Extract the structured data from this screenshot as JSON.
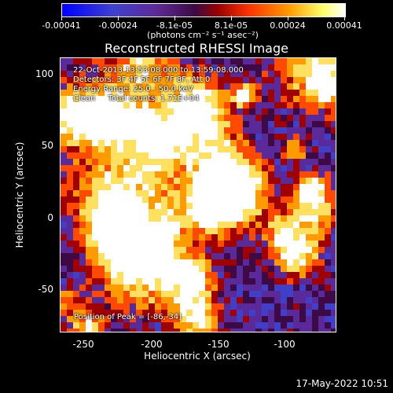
{
  "colorbar": {
    "ticks": [
      "-0.00041",
      "-0.00024",
      "-8.1e-05",
      "8.1e-05",
      "0.00024",
      "0.00041"
    ],
    "units": "(photons cm⁻² s⁻¹ asec⁻²)"
  },
  "title": "Reconstructed RHESSI Image",
  "info": {
    "time": "22-Oct-2013 13:53:08.000 to 13:59:08.000",
    "detectors": "Detectors: 3F 4F 5F 6F 7F 8F, Att 0",
    "energy": "Energy Range: 25.0 - 50.0 keV",
    "clean": "Clean     Total counts: 1.71E+04"
  },
  "peak": "Position of Peak = [-86,-34]",
  "axes": {
    "xlabel": "Heliocentric X (arcsec)",
    "ylabel": "Heliocentric Y (arcsec)",
    "xticks": [
      "-250",
      "-200",
      "-150",
      "-100"
    ],
    "yticks": [
      "100",
      "50",
      "0",
      "-50"
    ]
  },
  "timestamp": "17-May-2022 10:51",
  "colors": {
    "deep": "#3d0a45",
    "low": "#5b2a9a",
    "blue": "#3f3fc8",
    "mid": "#a00000",
    "hot": "#ff4a00",
    "warm": "#ff9a00",
    "bright": "#ffe060",
    "white": "#ffffff"
  }
}
